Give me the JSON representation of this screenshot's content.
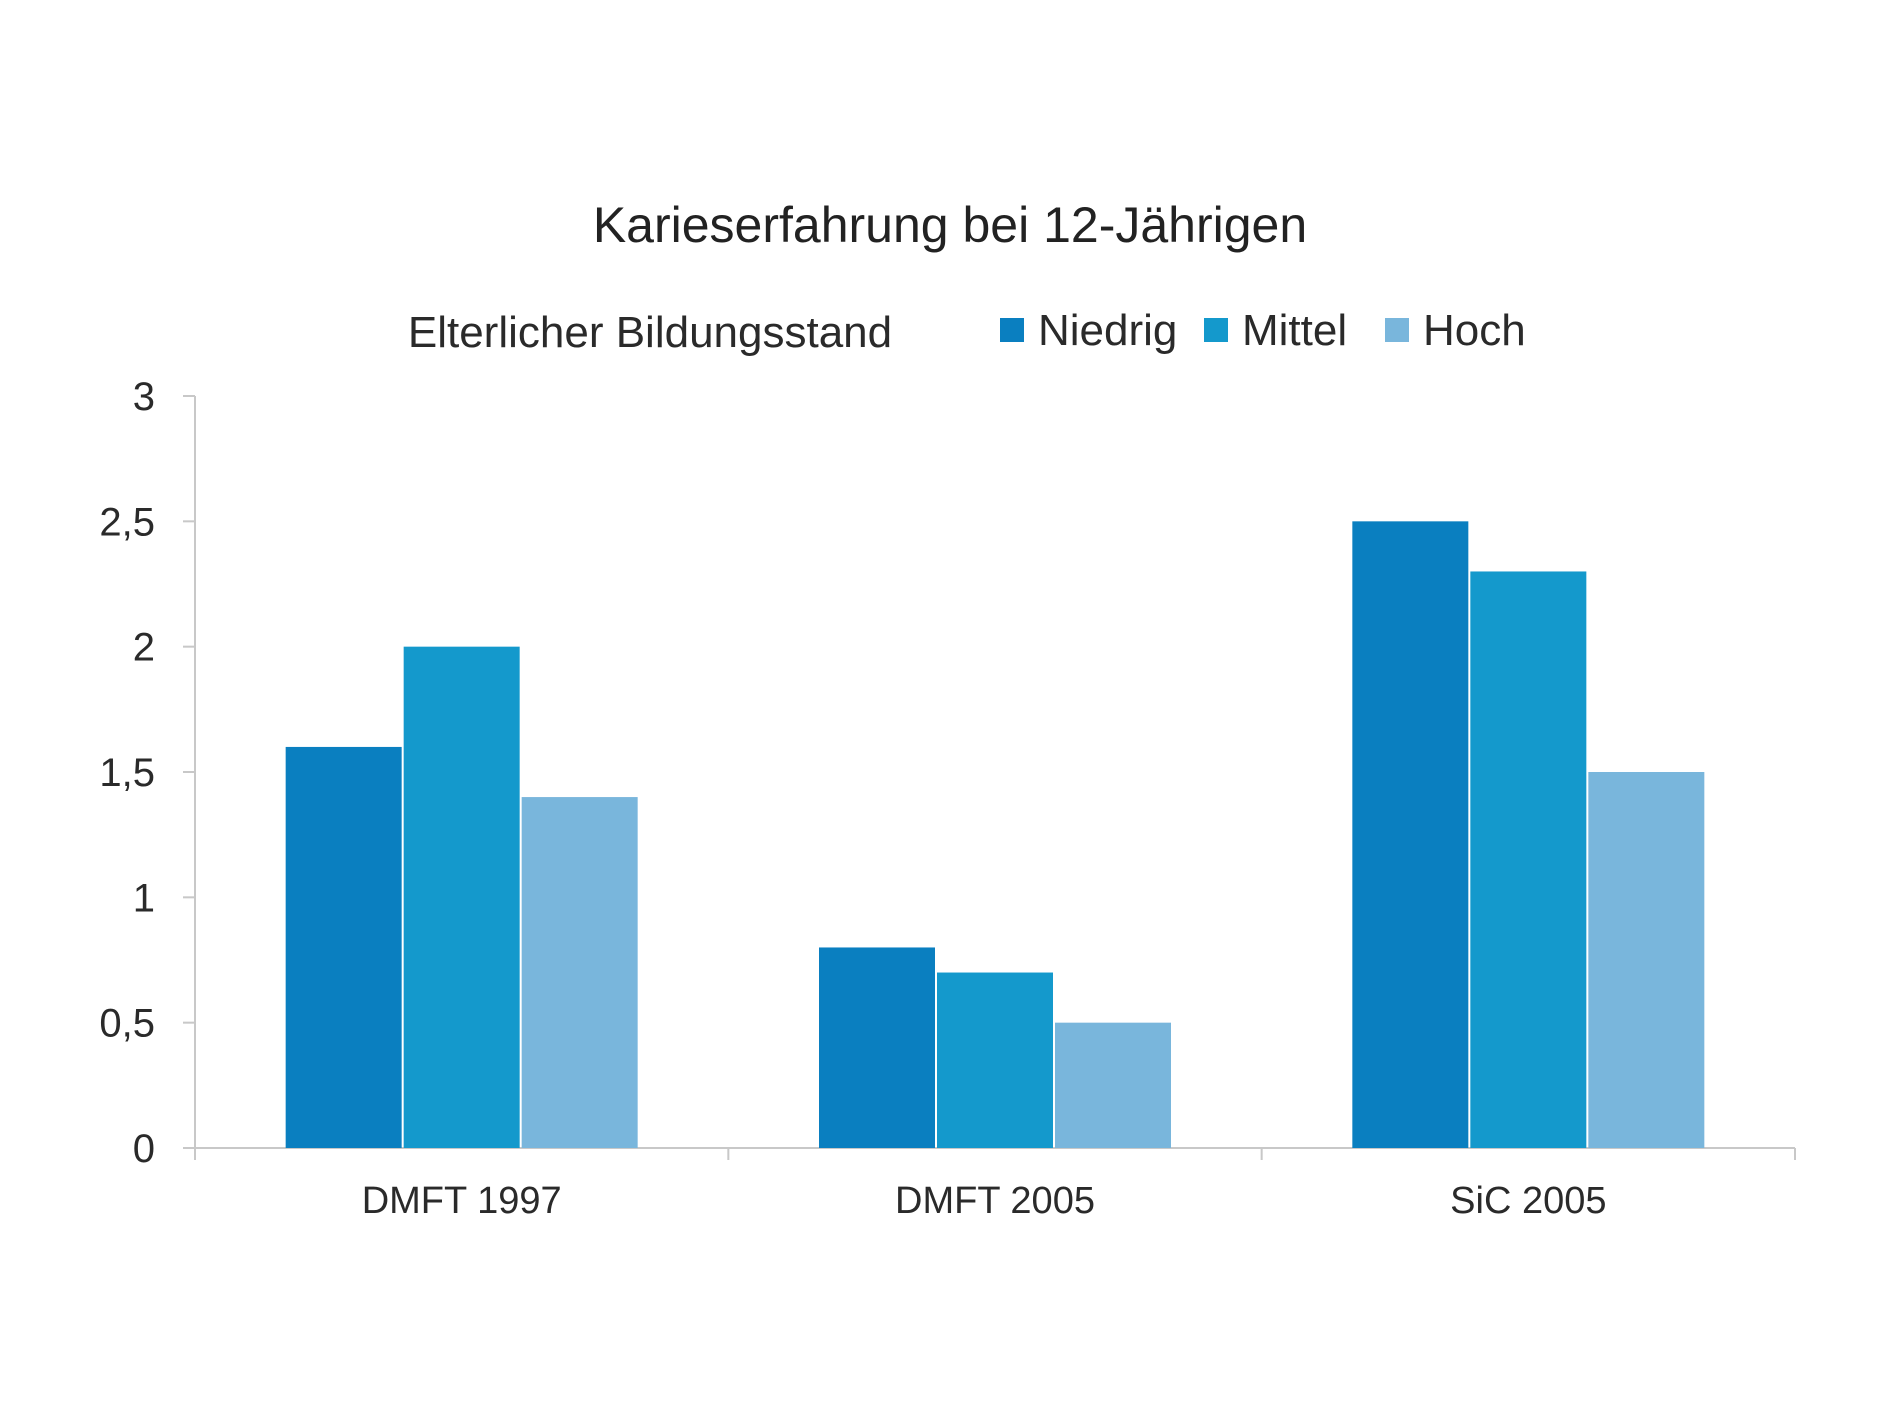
{
  "chart_data": {
    "type": "bar",
    "title": "Karieserfahrung bei 12-Jährigen",
    "legend_title": "Elterlicher Bildungsstand",
    "legend_position": "top",
    "categories": [
      "DMFT 1997",
      "DMFT 2005",
      "SiC 2005"
    ],
    "series": [
      {
        "name": "Niedrig",
        "color": "#0a7fc0",
        "values": [
          1.6,
          0.8,
          2.5
        ]
      },
      {
        "name": "Mittel",
        "color": "#1499cc",
        "values": [
          2.0,
          0.7,
          2.3
        ]
      },
      {
        "name": "Hoch",
        "color": "#79b6dc",
        "values": [
          1.4,
          0.5,
          1.5
        ]
      }
    ],
    "ylim": [
      0,
      3
    ],
    "yticks": [
      0,
      0.5,
      1,
      1.5,
      2,
      2.5,
      3
    ],
    "ytick_labels": [
      "0",
      "0,5",
      "1",
      "1,5",
      "2",
      "2,5",
      "3"
    ],
    "xlabel": "",
    "ylabel": "",
    "grid": false
  }
}
